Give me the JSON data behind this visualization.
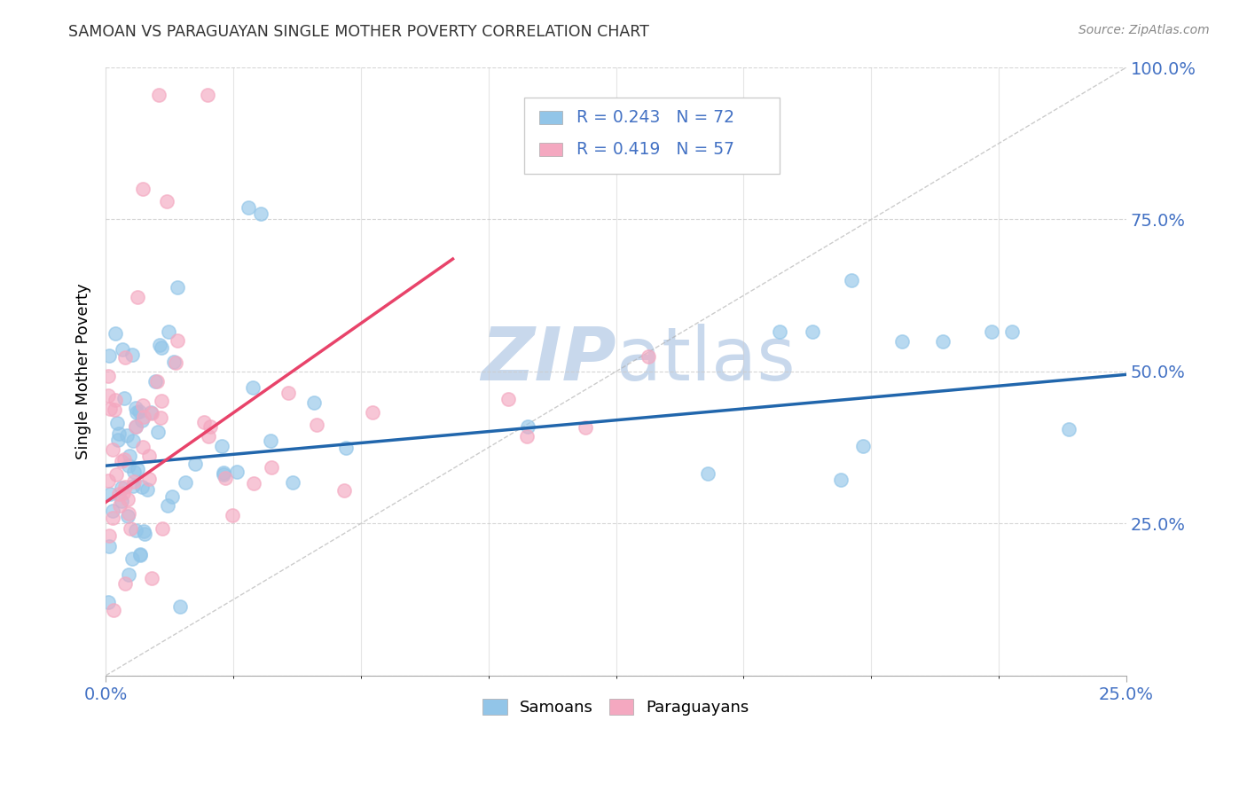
{
  "title": "SAMOAN VS PARAGUAYAN SINGLE MOTHER POVERTY CORRELATION CHART",
  "source": "Source: ZipAtlas.com",
  "ylabel": "Single Mother Poverty",
  "xlim": [
    0.0,
    0.25
  ],
  "ylim": [
    0.0,
    1.0
  ],
  "samoan_R": 0.243,
  "samoan_N": 72,
  "paraguayan_R": 0.419,
  "paraguayan_N": 57,
  "samoan_color": "#92C5E8",
  "paraguayan_color": "#F4A8C0",
  "trend_samoan_color": "#2166AC",
  "trend_paraguayan_color": "#E8436A",
  "watermark_zip": "ZIP",
  "watermark_atlas": "atlas",
  "watermark_color": "#C8D8EC",
  "background_color": "#FFFFFF",
  "grid_color": "#CCCCCC",
  "ytick_color": "#4472C4",
  "xtick_color": "#4472C4",
  "sam_trend_x0": 0.0,
  "sam_trend_y0": 0.345,
  "sam_trend_x1": 0.25,
  "sam_trend_y1": 0.495,
  "par_trend_x0": 0.0,
  "par_trend_y0": 0.285,
  "par_trend_x1": 0.085,
  "par_trend_y1": 0.685
}
